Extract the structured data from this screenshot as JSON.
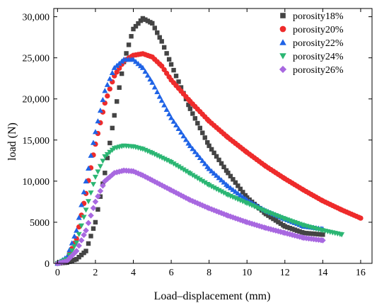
{
  "chart_data": {
    "type": "scatter",
    "title": "",
    "xlabel": "Load–displacement (mm)",
    "ylabel": "load (N)",
    "xlim": [
      -0.2,
      16.6
    ],
    "ylim": [
      0,
      31000
    ],
    "x_ticks": [
      0,
      2,
      4,
      6,
      8,
      10,
      12,
      14,
      16
    ],
    "x_tick_labels": [
      "0",
      "2",
      "4",
      "6",
      "8",
      "10",
      "12",
      "14",
      "16"
    ],
    "y_ticks": [
      0,
      5000,
      10000,
      15000,
      20000,
      25000,
      30000
    ],
    "y_tick_labels": [
      "0",
      "5000",
      "10,000",
      "15,000",
      "20,000",
      "25,000",
      "30,000"
    ],
    "grid": false,
    "legend_position": "top-right",
    "series": [
      {
        "name": "porosity18%",
        "marker": "square",
        "color": "#444444",
        "x": [
          0,
          0.5,
          1.0,
          1.5,
          2.0,
          2.5,
          3.0,
          3.5,
          4.0,
          4.5,
          5.0,
          5.5,
          6.0,
          7.0,
          8.0,
          9.0,
          10.0,
          11.0,
          12.0,
          13.0,
          14.0
        ],
        "y": [
          0,
          100,
          500,
          1500,
          5000,
          11000,
          18000,
          24500,
          28500,
          29800,
          29200,
          27000,
          24200,
          18800,
          14300,
          11000,
          8000,
          6000,
          4500,
          3700,
          3500
        ]
      },
      {
        "name": "porosity20%",
        "marker": "circle",
        "color": "#ee2b2b",
        "x": [
          0,
          0.5,
          1.0,
          1.5,
          2.0,
          2.5,
          3.0,
          3.5,
          4.0,
          4.5,
          5.0,
          5.5,
          6.0,
          7.0,
          8.0,
          9.0,
          10.0,
          11.0,
          12.0,
          13.0,
          14.0,
          15.0,
          16.0
        ],
        "y": [
          0,
          500,
          3000,
          8500,
          14500,
          19500,
          22800,
          24600,
          25300,
          25500,
          25100,
          24000,
          22300,
          19700,
          17300,
          15300,
          13500,
          11800,
          10300,
          8900,
          7600,
          6500,
          5500
        ]
      },
      {
        "name": "porosity22%",
        "marker": "triangle-up",
        "color": "#1f63e6",
        "x": [
          0,
          0.5,
          1.0,
          1.5,
          2.0,
          2.5,
          3.0,
          3.5,
          4.0,
          4.5,
          5.0,
          5.5,
          6.0,
          7.0,
          8.0,
          9.0,
          10.0,
          11.0,
          12.0,
          13.0,
          14.0
        ],
        "y": [
          0,
          800,
          4000,
          10000,
          16000,
          21000,
          23800,
          24800,
          24800,
          23800,
          22000,
          19800,
          17700,
          14300,
          11500,
          9400,
          7700,
          6400,
          5400,
          4500,
          4200
        ]
      },
      {
        "name": "porosity24%",
        "marker": "triangle-down",
        "color": "#2bb673",
        "x": [
          0,
          0.5,
          1.0,
          1.5,
          2.0,
          2.5,
          3.0,
          3.5,
          4.0,
          4.5,
          5.0,
          6.0,
          7.0,
          8.0,
          9.0,
          10.0,
          11.0,
          12.0,
          13.0,
          14.0,
          15.0
        ],
        "y": [
          0,
          500,
          2500,
          6500,
          10500,
          13000,
          14000,
          14300,
          14200,
          13900,
          13400,
          12300,
          10900,
          9500,
          8300,
          7300,
          6300,
          5400,
          4600,
          4000,
          3500
        ]
      },
      {
        "name": "porosity26%",
        "marker": "diamond",
        "color": "#a868e0",
        "x": [
          0,
          0.5,
          1.0,
          1.5,
          2.0,
          2.5,
          3.0,
          3.5,
          4.0,
          4.5,
          5.0,
          6.0,
          7.0,
          8.0,
          9.0,
          10.0,
          11.0,
          12.0,
          13.0,
          14.0
        ],
        "y": [
          0,
          300,
          1500,
          4000,
          7500,
          10000,
          11000,
          11300,
          11200,
          10700,
          10100,
          8900,
          7700,
          6700,
          5800,
          5000,
          4300,
          3700,
          3100,
          2800
        ]
      }
    ]
  }
}
